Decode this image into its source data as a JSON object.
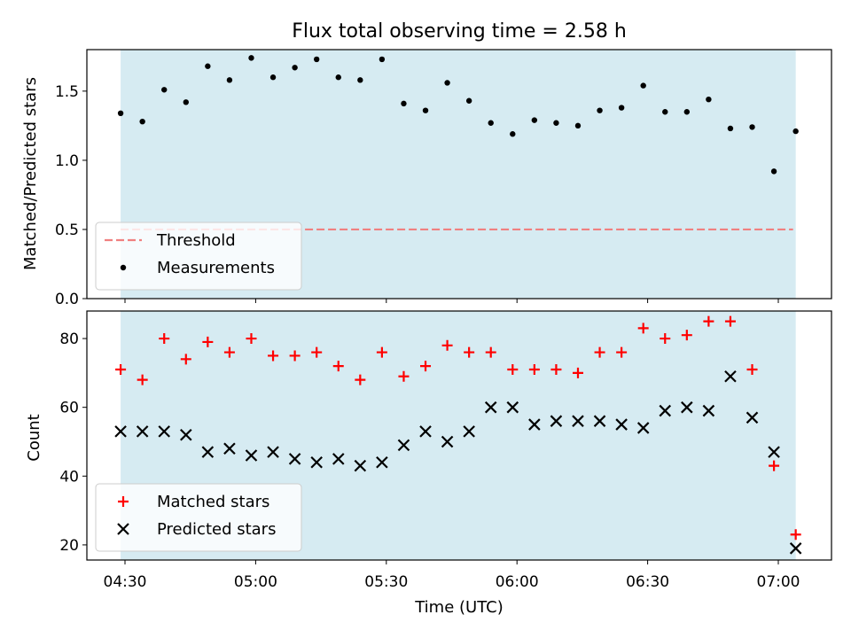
{
  "chart_data": [
    {
      "type": "scatter",
      "title": "Flux total observing time = 2.58 h",
      "xlabel": "",
      "ylabel": "Matched/Predicted stars",
      "ylim": [
        0,
        1.8
      ],
      "yticks": [
        "0.0",
        "0.5",
        "1.0",
        "1.5"
      ],
      "x": [
        "04:29",
        "04:34",
        "04:39",
        "04:44",
        "04:49",
        "04:54",
        "04:59",
        "05:04",
        "05:09",
        "05:14",
        "05:19",
        "05:24",
        "05:29",
        "05:34",
        "05:39",
        "05:44",
        "05:49",
        "05:54",
        "05:59",
        "06:04",
        "06:09",
        "06:14",
        "06:19",
        "06:24",
        "06:29",
        "06:34",
        "06:39",
        "06:44",
        "06:49",
        "06:54",
        "06:59",
        "07:04"
      ],
      "series": [
        {
          "name": "Measurements",
          "marker": "dot",
          "color": "#000000",
          "values": [
            1.34,
            1.28,
            1.51,
            1.42,
            1.68,
            1.58,
            1.74,
            1.6,
            1.67,
            1.73,
            1.6,
            1.58,
            1.73,
            1.41,
            1.36,
            1.56,
            1.43,
            1.27,
            1.19,
            1.29,
            1.27,
            1.25,
            1.36,
            1.38,
            1.54,
            1.35,
            1.35,
            1.44,
            1.23,
            1.24,
            0.92,
            1.21
          ]
        }
      ],
      "threshold": {
        "name": "Threshold",
        "value": 0.5,
        "color": "#f08080"
      },
      "span": {
        "start": "04:29",
        "end": "07:04",
        "color": "#add8e6"
      },
      "legend": "lower-left",
      "grid": false
    },
    {
      "type": "scatter",
      "title": "",
      "xlabel": "Time (UTC)",
      "ylabel": "Count",
      "ylim": [
        15.6,
        88
      ],
      "yticks": [
        "20",
        "40",
        "60",
        "80"
      ],
      "xticks": [
        "04:30",
        "05:00",
        "05:30",
        "06:00",
        "06:30",
        "07:00"
      ],
      "x": [
        "04:29",
        "04:34",
        "04:39",
        "04:44",
        "04:49",
        "04:54",
        "04:59",
        "05:04",
        "05:09",
        "05:14",
        "05:19",
        "05:24",
        "05:29",
        "05:34",
        "05:39",
        "05:44",
        "05:49",
        "05:54",
        "05:59",
        "06:04",
        "06:09",
        "06:14",
        "06:19",
        "06:24",
        "06:29",
        "06:34",
        "06:39",
        "06:44",
        "06:49",
        "06:54",
        "06:59",
        "07:04"
      ],
      "series": [
        {
          "name": "Matched stars",
          "marker": "plus",
          "color": "#ff0000",
          "values": [
            71,
            68,
            80,
            74,
            79,
            76,
            80,
            75,
            75,
            76,
            72,
            68,
            76,
            69,
            72,
            78,
            76,
            76,
            71,
            71,
            71,
            70,
            76,
            76,
            83,
            80,
            81,
            85,
            85,
            71,
            43,
            23
          ]
        },
        {
          "name": "Predicted stars",
          "marker": "x",
          "color": "#000000",
          "values": [
            53,
            53,
            53,
            52,
            47,
            48,
            46,
            47,
            45,
            44,
            45,
            43,
            44,
            49,
            53,
            50,
            53,
            60,
            60,
            55,
            56,
            56,
            56,
            55,
            54,
            59,
            60,
            59,
            69,
            57,
            47,
            19
          ]
        }
      ],
      "span": {
        "start": "04:29",
        "end": "07:04",
        "color": "#add8e6"
      },
      "legend": "lower-left",
      "grid": false
    }
  ]
}
